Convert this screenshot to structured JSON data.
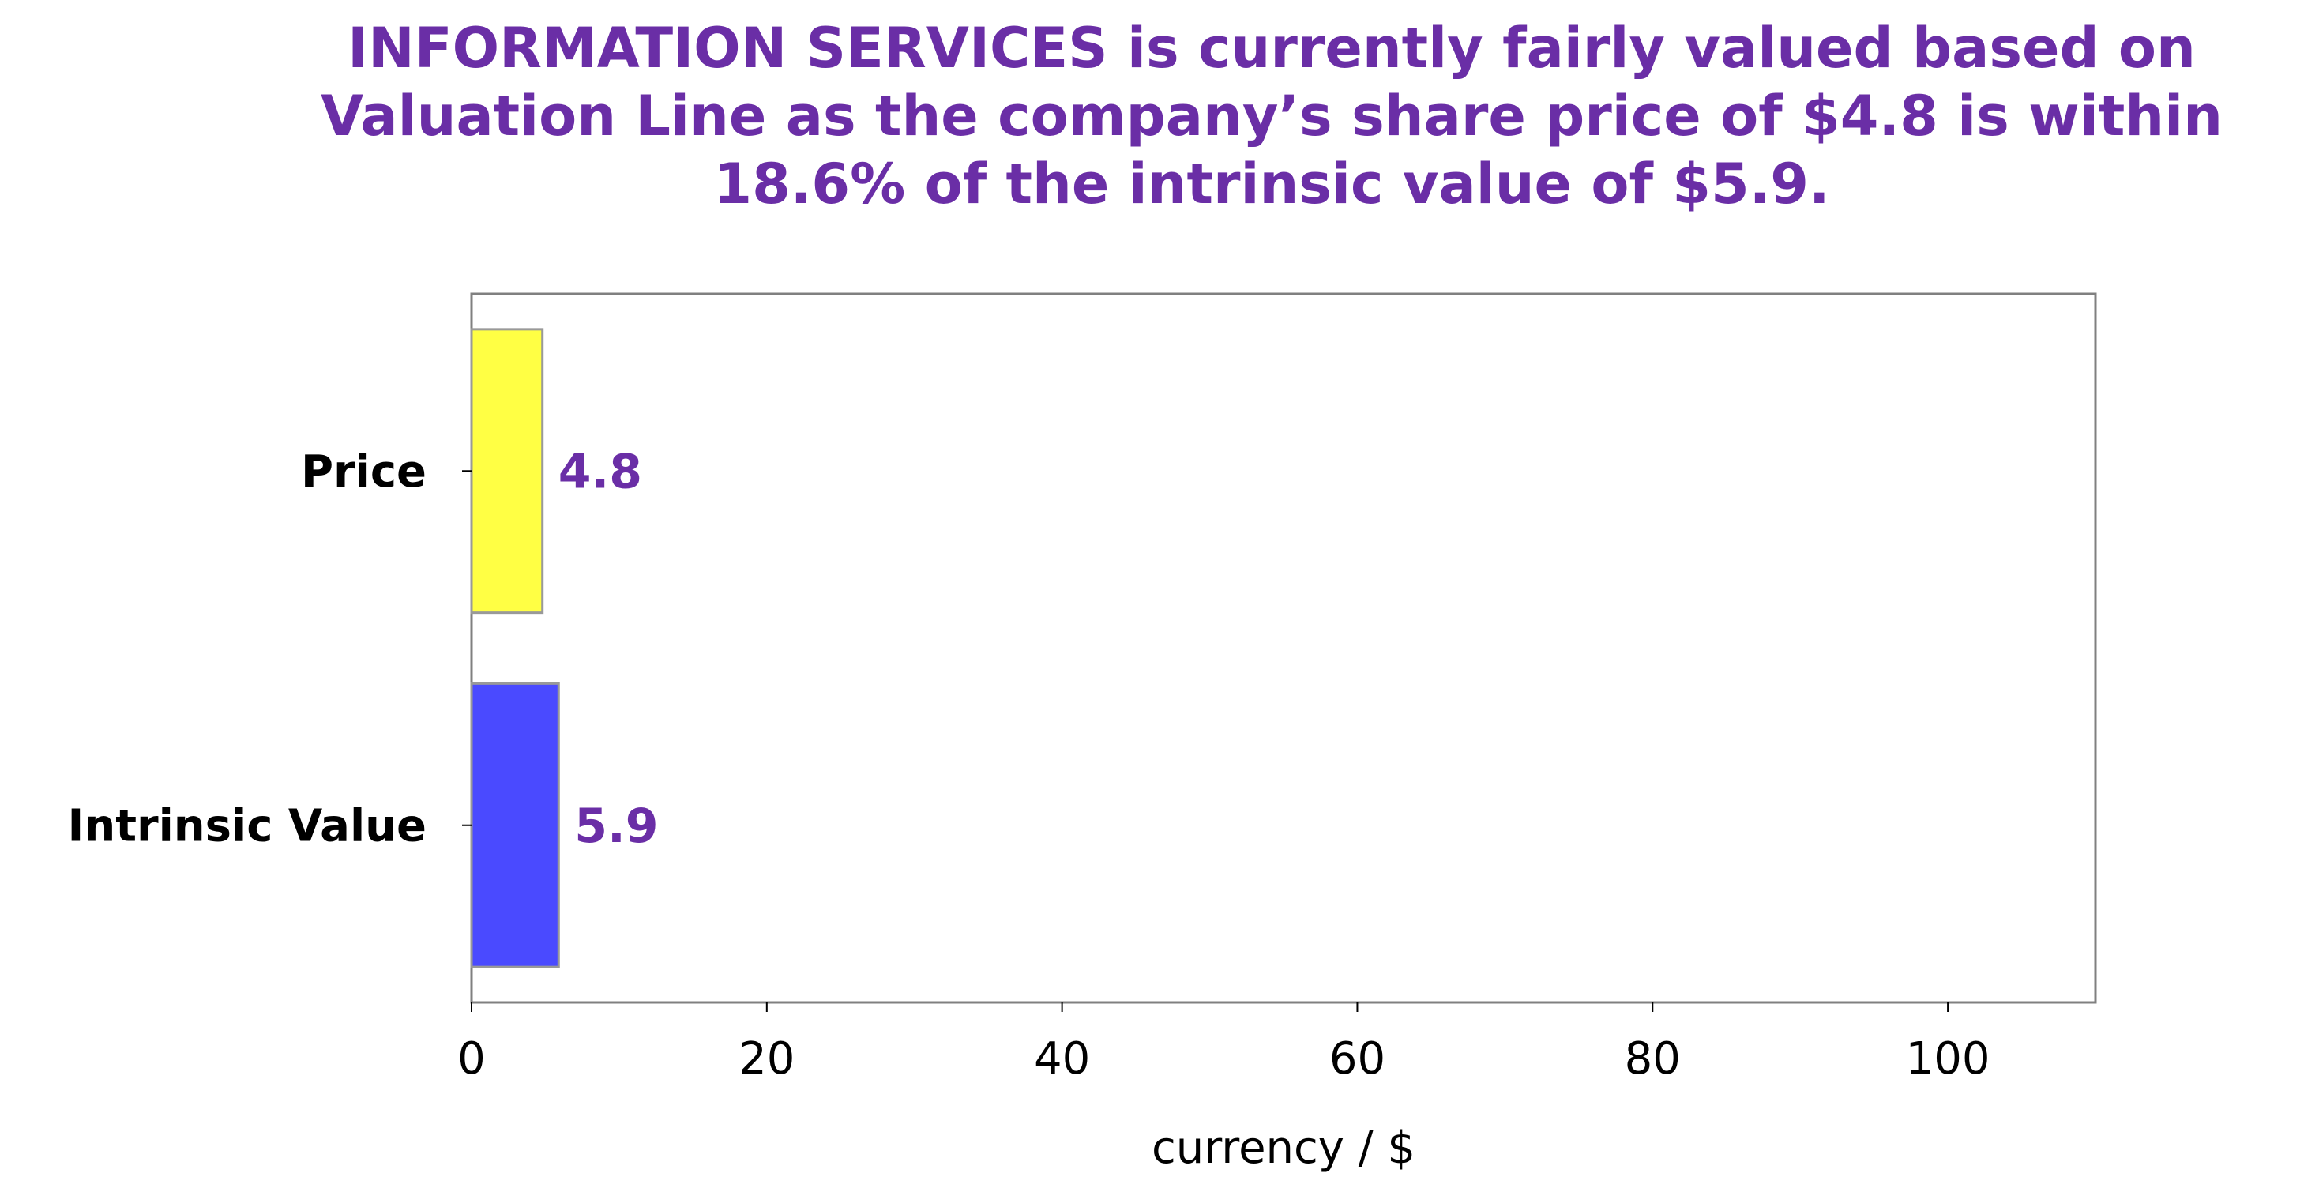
{
  "chart_data": {
    "type": "bar",
    "orientation": "horizontal",
    "title_lines": [
      "INFORMATION SERVICES is currently fairly valued based on",
      "Valuation Line as the company’s share price of $4.8 is within",
      "18.6% of the intrinsic value of $5.9."
    ],
    "categories": [
      "Price",
      "Intrinsic Value"
    ],
    "values": [
      4.8,
      5.9
    ],
    "value_labels": [
      "4.8",
      "5.9"
    ],
    "bar_colors": [
      "#ffff44",
      "#4a4aff"
    ],
    "xlabel": "currency / $",
    "ylabel": "",
    "xlim": [
      0,
      110
    ],
    "xticks": [
      0,
      20,
      40,
      60,
      80,
      100
    ],
    "xtick_labels": [
      "0",
      "20",
      "40",
      "60",
      "80",
      "100"
    ],
    "grid": false,
    "legend": "none"
  },
  "colors": {
    "title": "#6a2ea6",
    "value_label": "#6a2ea6",
    "bar_edge": "#999999",
    "frame": "#808080"
  }
}
